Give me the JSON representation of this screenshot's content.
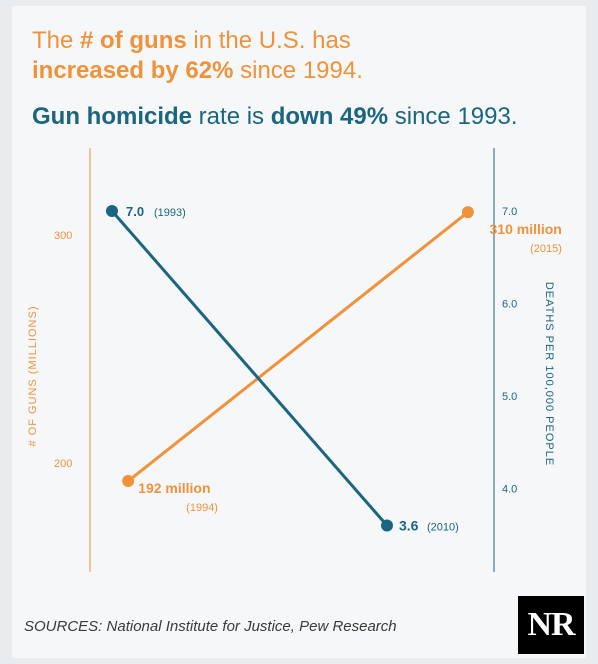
{
  "headline": {
    "line1_a": "The ",
    "line1_b": "# of guns",
    "line1_c": " in the U.S. has",
    "line2_a": "increased by 62%",
    "line2_b": " since 1994.",
    "line3_a": "Gun homicide",
    "line3_b": " rate is ",
    "line3_c": "down 49%",
    "line3_d": " since 1993."
  },
  "chart_data": {
    "type": "line",
    "left_axis": {
      "label": "# OF GUNS (MILLIONS)",
      "ticks": [
        "300",
        "200"
      ],
      "tick_values": [
        300,
        200
      ],
      "color": "#f0923a"
    },
    "right_axis": {
      "label": "DEATHS PER 100,000 PEOPLE",
      "ticks": [
        "7.0",
        "6.0",
        "5.0",
        "4.0"
      ],
      "tick_values": [
        7.0,
        6.0,
        5.0,
        4.0
      ],
      "color": "#1c6580"
    },
    "series": [
      {
        "color": "#f0923a",
        "axis": "left",
        "points": [
          {
            "year": 1994,
            "value": 192,
            "label_value": "192 million",
            "label_year": "(1994)"
          },
          {
            "year": 2015,
            "value": 310,
            "label_value": "310 million",
            "label_year": "(2015)"
          }
        ]
      },
      {
        "color": "#1c6580",
        "axis": "right",
        "points": [
          {
            "year": 1993,
            "value": 7.0,
            "label_value": "7.0",
            "label_year": "(1993)"
          },
          {
            "year": 2010,
            "value": 3.6,
            "label_value": "3.6",
            "label_year": "(2010)"
          }
        ]
      }
    ]
  },
  "footer": {
    "sources": "SOURCES: National Institute for Justice, Pew Research",
    "logo": "NR"
  }
}
